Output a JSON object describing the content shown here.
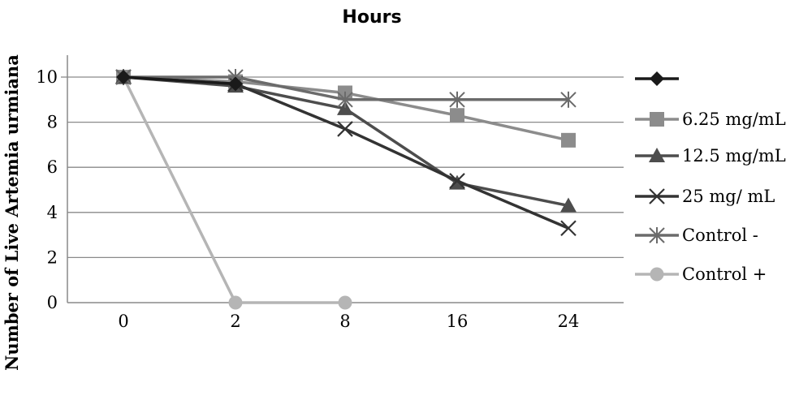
{
  "chart_data": {
    "type": "line",
    "title": "Hours",
    "xlabel": "",
    "ylabel": "Number of Live Artemia urmiana",
    "categories": [
      "0",
      "2",
      "8",
      "16",
      "24"
    ],
    "ylim": [
      0,
      10
    ],
    "yticks": [
      0,
      2,
      4,
      6,
      8,
      10
    ],
    "grid": "horizontal",
    "legend_position": "right",
    "series": [
      {
        "name": "",
        "marker": "diamond",
        "color": "#1a1a1a",
        "values": [
          10,
          9.7,
          null,
          null,
          null
        ]
      },
      {
        "name": "6.25 mg/mL",
        "marker": "square",
        "color": "#8c8c8c",
        "values": [
          10,
          9.8,
          9.3,
          8.3,
          7.2
        ]
      },
      {
        "name": "12.5 mg/mL",
        "marker": "triangle",
        "color": "#4d4d4d",
        "values": [
          10,
          9.6,
          8.6,
          5.3,
          4.3
        ]
      },
      {
        "name": "25 mg/ mL",
        "marker": "x",
        "color": "#333333",
        "values": [
          10,
          9.7,
          7.7,
          5.4,
          3.3
        ]
      },
      {
        "name": "Control -",
        "marker": "asterisk",
        "color": "#6b6b6b",
        "values": [
          10,
          10,
          9,
          9,
          9
        ]
      },
      {
        "name": "Control +",
        "marker": "circle",
        "color": "#b5b5b5",
        "values": [
          10,
          0,
          0,
          null,
          null
        ]
      }
    ]
  }
}
